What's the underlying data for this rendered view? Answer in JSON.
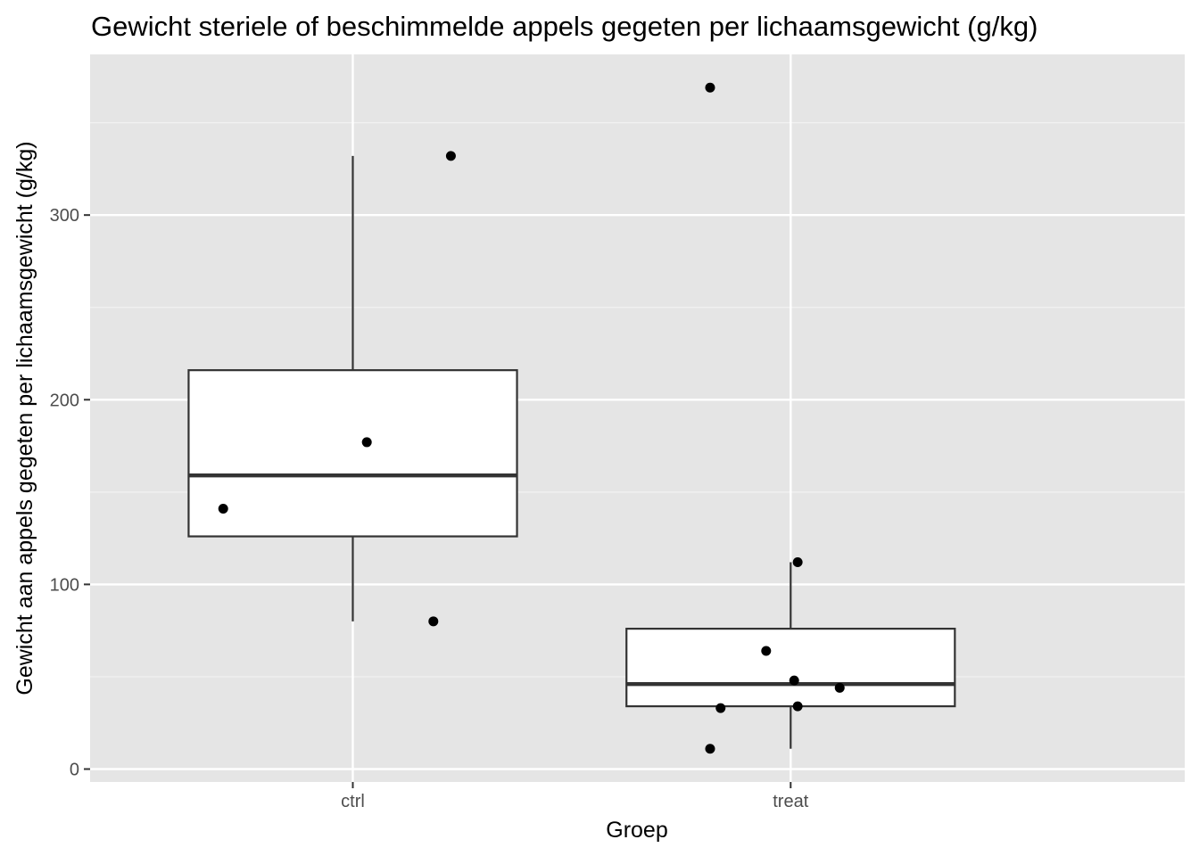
{
  "chart_data": {
    "type": "boxplot",
    "title": "Gewicht steriele of beschimmelde appels gegeten per lichaamsgewicht (g/kg)",
    "xlabel": "Groep",
    "ylabel": "Gewicht aan appels gegeten per lichaamsgewicht (g/kg)",
    "categories": [
      "ctrl",
      "treat"
    ],
    "ylim": [
      -7,
      387
    ],
    "yticks": [
      0,
      100,
      200,
      300
    ],
    "grid": true,
    "legend": "none",
    "boxes": [
      {
        "category": "ctrl",
        "whisker_low": 80,
        "q1": 126,
        "median": 159,
        "q3": 216,
        "whisker_high": 332
      },
      {
        "category": "treat",
        "whisker_low": 11,
        "q1": 34,
        "median": 46,
        "q3": 76,
        "whisker_high": 112
      }
    ],
    "points": [
      {
        "category": "ctrl",
        "jitter": -0.37,
        "y": 141
      },
      {
        "category": "ctrl",
        "jitter": 0.04,
        "y": 177
      },
      {
        "category": "ctrl",
        "jitter": 0.23,
        "y": 80
      },
      {
        "category": "ctrl",
        "jitter": 0.28,
        "y": 332
      },
      {
        "category": "treat",
        "jitter": -0.23,
        "y": 369
      },
      {
        "category": "treat",
        "jitter": 0.02,
        "y": 112
      },
      {
        "category": "treat",
        "jitter": -0.07,
        "y": 64
      },
      {
        "category": "treat",
        "jitter": 0.01,
        "y": 48
      },
      {
        "category": "treat",
        "jitter": 0.14,
        "y": 44
      },
      {
        "category": "treat",
        "jitter": 0.02,
        "y": 34
      },
      {
        "category": "treat",
        "jitter": -0.2,
        "y": 33
      },
      {
        "category": "treat",
        "jitter": -0.23,
        "y": 11
      }
    ]
  }
}
